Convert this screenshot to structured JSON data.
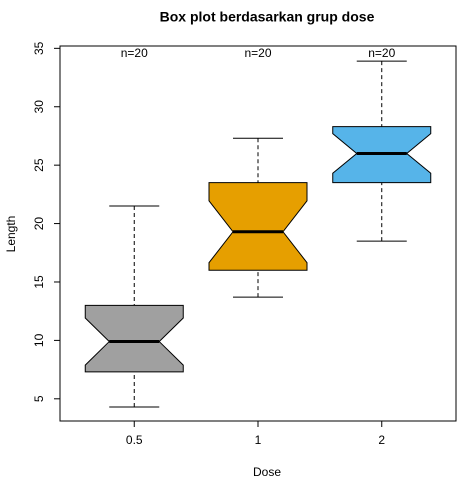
{
  "chart_data": {
    "type": "boxplot",
    "title": "Box plot berdasarkan grup dose",
    "x_label": "Dose",
    "y_label": "Length",
    "categories": [
      "0.5",
      "1",
      "2"
    ],
    "colors": [
      "#a0a0a0",
      "#e69f00",
      "#56b4e9"
    ],
    "min": [
      4.3,
      13.7,
      18.5
    ],
    "q1": [
      7.3,
      16.0,
      23.5
    ],
    "median": [
      9.9,
      19.3,
      26.0
    ],
    "q3": [
      13.0,
      23.5,
      28.3
    ],
    "max": [
      21.5,
      27.3,
      33.9
    ],
    "annotations": [
      "n=20",
      "n=20",
      "n=20"
    ],
    "notch": true,
    "n": [
      20,
      20,
      20
    ],
    "ylim": [
      3.1,
      35.2
    ],
    "yticks": [
      5,
      10,
      15,
      20,
      25,
      30,
      35
    ]
  }
}
